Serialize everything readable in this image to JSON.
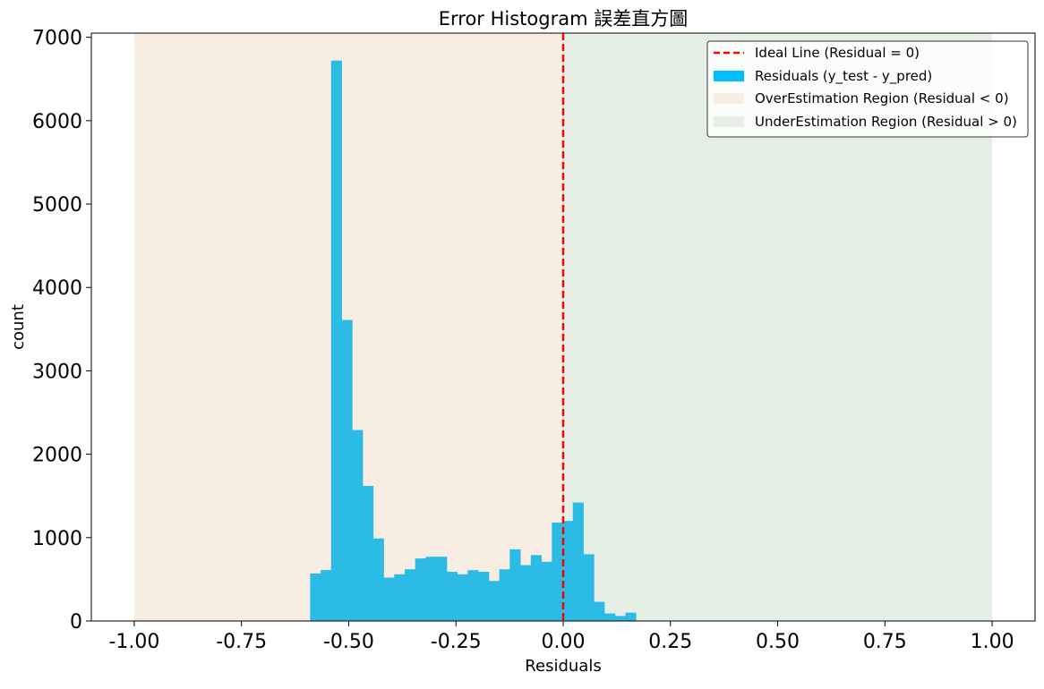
{
  "chart_data": {
    "type": "bar",
    "title": "Error Histogram 誤差直方圖",
    "xlabel": "Residuals",
    "ylabel": "count",
    "xlim": [
      -1.1,
      1.1
    ],
    "ylim": [
      0,
      7050
    ],
    "xticks": [
      -1.0,
      -0.75,
      -0.5,
      -0.25,
      0.0,
      0.25,
      0.5,
      0.75,
      1.0
    ],
    "xtick_labels": [
      "-1.00",
      "-0.75",
      "-0.50",
      "-0.25",
      "0.00",
      "0.25",
      "0.50",
      "0.75",
      "1.00"
    ],
    "yticks": [
      0,
      1000,
      2000,
      3000,
      4000,
      5000,
      6000,
      7000
    ],
    "ytick_labels": [
      "0",
      "1000",
      "2000",
      "3000",
      "4000",
      "5000",
      "6000",
      "7000"
    ],
    "bin_width": 0.0245,
    "bin_start": -0.59,
    "counts": [
      570,
      610,
      6720,
      3610,
      2290,
      1620,
      990,
      520,
      560,
      620,
      750,
      770,
      770,
      590,
      560,
      610,
      590,
      480,
      620,
      860,
      670,
      790,
      710,
      1180,
      1200,
      1420,
      800,
      230,
      90,
      60,
      100
    ],
    "series": [
      {
        "name": "Residuals (y_test - y_pred)",
        "color": "#2bbbe4",
        "legend_color": "#00bfff"
      }
    ],
    "ideal_line": {
      "x": 0,
      "label": "Ideal Line (Residual = 0)",
      "color": "#ff0000"
    },
    "regions": [
      {
        "label": "OverEstimation Region (Residual < 0)",
        "x_from": -1.0,
        "x_to": 0.0,
        "color": "#f7ede3"
      },
      {
        "label": "UnderEstimation Region (Residual > 0)",
        "x_from": 0.0,
        "x_to": 1.0,
        "color": "#e5efe5"
      }
    ],
    "legend_position": "top-right",
    "grid": false
  }
}
